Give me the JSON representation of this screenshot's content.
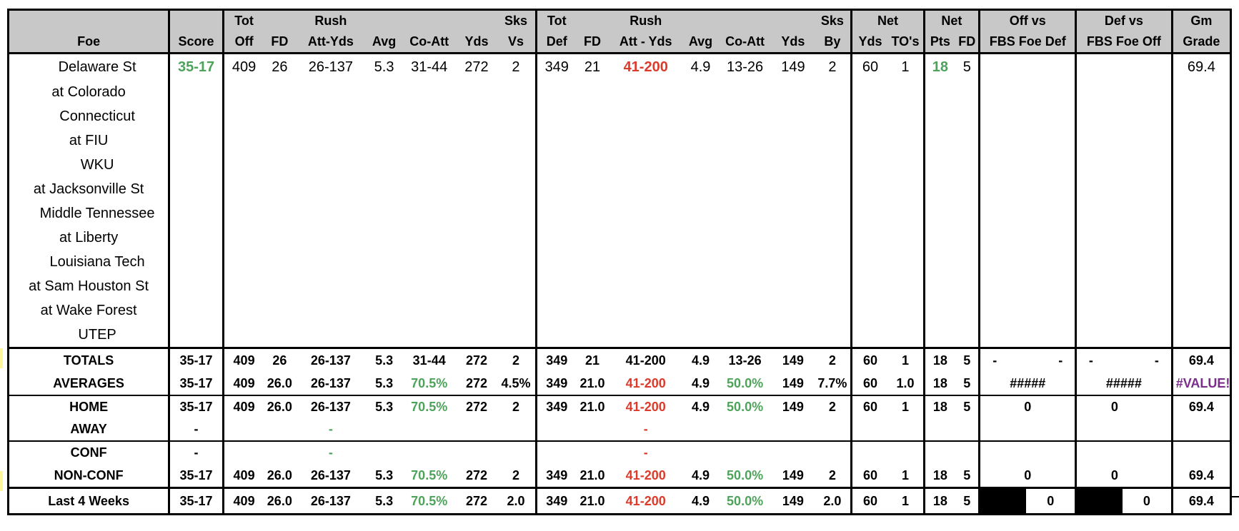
{
  "header": {
    "row1": {
      "tot_off": "Tot",
      "rush": "Rush",
      "sks_vs": "Sks",
      "tot_def": "Tot",
      "rush_def": "Rush",
      "sks_by": "Sks",
      "net": "Net",
      "net_pts": "Net",
      "off_vs": "Off vs",
      "def_vs": "Def vs",
      "gm": "Gm"
    },
    "row2": {
      "foe": "Foe",
      "score": "Score",
      "off": "Off",
      "fd": "FD",
      "att_yds": "Att-Yds",
      "avg": "Avg",
      "co_att": "Co-Att",
      "yds": "Yds",
      "vs": "Vs",
      "def": "Def",
      "fd_def": "FD",
      "att_yds_def": "Att - Yds",
      "avg_def": "Avg",
      "co_att_def": "Co-Att",
      "yds_def": "Yds",
      "by": "By",
      "net_yds": "Yds",
      "net_tos": "TO's",
      "pts": "Pts",
      "net_fd": "FD",
      "fbs_foe_def": "FBS Foe Def",
      "fbs_foe_off": "FBS Foe Off",
      "grade": "Grade"
    }
  },
  "games": [
    {
      "foe": "Delaware St",
      "score": "35-17",
      "tot_off": "409",
      "fd": "26",
      "rush_att_yds": "26-137",
      "rush_avg": "5.3",
      "pass_co_att": "31-44",
      "pass_yds": "272",
      "sks_vs": "2",
      "tot_def": "349",
      "fd_def": "21",
      "rush_def": "41-200",
      "rush_def_avg": "4.9",
      "pass_def_co_att": "13-26",
      "pass_def_yds": "149",
      "sks_by": "2",
      "net_yds": "60",
      "net_tos": "1",
      "net_pts": "18",
      "net_fd": "5",
      "grade": "69.4"
    },
    {
      "foe": "at Colorado"
    },
    {
      "foe": "Connecticut"
    },
    {
      "foe": "at FIU"
    },
    {
      "foe": "WKU"
    },
    {
      "foe": "at Jacksonville St"
    },
    {
      "foe": "Middle Tennessee"
    },
    {
      "foe": "at Liberty"
    },
    {
      "foe": "Louisiana Tech"
    },
    {
      "foe": "at Sam Houston St"
    },
    {
      "foe": "at Wake Forest"
    },
    {
      "foe": "UTEP"
    }
  ],
  "totals": {
    "label": "TOTALS",
    "score": "35-17",
    "tot_off": "409",
    "fd": "26",
    "rush_att_yds": "26-137",
    "rush_avg": "5.3",
    "pass_co_att": "31-44",
    "pass_yds": "272",
    "sks_vs": "2",
    "tot_def": "349",
    "fd_def": "21",
    "rush_def": "41-200",
    "rush_def_avg": "4.9",
    "pass_def_co_att": "13-26",
    "pass_def_yds": "149",
    "sks_by": "2",
    "net_yds": "60",
    "net_tos": "1",
    "net_pts": "18",
    "net_fd": "5",
    "off_vs_1": "-",
    "off_vs_2": "-",
    "def_vs_1": "-",
    "def_vs_2": "-",
    "grade": "69.4"
  },
  "averages": {
    "label": "AVERAGES",
    "score": "35-17",
    "tot_off": "409",
    "fd": "26.0",
    "rush_att_yds": "26-137",
    "rush_avg": "5.3",
    "pass_pct": "70.5%",
    "pass_yds": "272",
    "sks_vs": "4.5%",
    "tot_def": "349",
    "fd_def": "21.0",
    "rush_def": "41-200",
    "rush_def_avg": "4.9",
    "pass_def_pct": "50.0%",
    "pass_def_yds": "149",
    "sks_by": "7.7%",
    "net_yds": "60",
    "net_tos": "1.0",
    "net_pts": "18",
    "net_fd": "5",
    "off_vs": "#####",
    "def_vs": "#####",
    "grade": "#VALUE!"
  },
  "home": {
    "label": "HOME",
    "score": "35-17",
    "tot_off": "409",
    "fd": "26.0",
    "rush_att_yds": "26-137",
    "rush_avg": "5.3",
    "pass_pct": "70.5%",
    "pass_yds": "272",
    "sks_vs": "2",
    "tot_def": "349",
    "fd_def": "21.0",
    "rush_def": "41-200",
    "rush_def_avg": "4.9",
    "pass_def_pct": "50.0%",
    "pass_def_yds": "149",
    "sks_by": "2",
    "net_yds": "60",
    "net_tos": "1",
    "net_pts": "18",
    "net_fd": "5",
    "off_vs": "0",
    "def_vs": "0",
    "grade": "69.4"
  },
  "away": {
    "label": "AWAY",
    "score": "-",
    "rush_att_yds": "-",
    "rush_def": "-"
  },
  "conf": {
    "label": "CONF",
    "score": "-",
    "rush_att_yds": "-",
    "rush_def": "-"
  },
  "nonconf": {
    "label": "NON-CONF",
    "score": "35-17",
    "tot_off": "409",
    "fd": "26.0",
    "rush_att_yds": "26-137",
    "rush_avg": "5.3",
    "pass_pct": "70.5%",
    "pass_yds": "272",
    "sks_vs": "2",
    "tot_def": "349",
    "fd_def": "21.0",
    "rush_def": "41-200",
    "rush_def_avg": "4.9",
    "pass_def_pct": "50.0%",
    "pass_def_yds": "149",
    "sks_by": "2",
    "net_yds": "60",
    "net_tos": "1",
    "net_pts": "18",
    "net_fd": "5",
    "off_vs": "0",
    "def_vs": "0",
    "grade": "69.4"
  },
  "last4": {
    "label": "Last 4 Weeks",
    "score": "35-17",
    "tot_off": "409",
    "fd": "26.0",
    "rush_att_yds": "26-137",
    "rush_avg": "5.3",
    "pass_pct": "70.5%",
    "pass_yds": "272",
    "sks_vs": "2.0",
    "tot_def": "349",
    "fd_def": "21.0",
    "rush_def": "41-200",
    "rush_def_avg": "4.9",
    "pass_def_pct": "50.0%",
    "pass_def_yds": "149",
    "sks_by": "2.0",
    "net_yds": "60",
    "net_tos": "1",
    "net_pts": "18",
    "net_fd": "5",
    "off_vs": "0",
    "def_vs": "0",
    "grade": "69.4"
  },
  "colors": {
    "header_bg": "#c8c8c8",
    "good": "#4ea35b",
    "bad": "#dc3b2b",
    "error": "#7a2d8a",
    "highlight_mark": "#fff59a"
  }
}
